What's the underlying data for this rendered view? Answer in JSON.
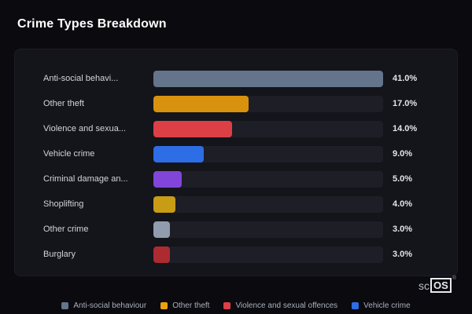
{
  "title": "Crime Types Breakdown",
  "chart_data": {
    "type": "bar",
    "orientation": "horizontal",
    "title": "Crime Types Breakdown",
    "xlim": [
      0,
      41
    ],
    "grid": false,
    "legend_position": "bottom",
    "categories": [
      "Anti-social behavi...",
      "Other theft",
      "Violence and sexua...",
      "Vehicle crime",
      "Criminal damage an...",
      "Shoplifting",
      "Other crime",
      "Burglary"
    ],
    "values": [
      41.0,
      17.0,
      14.0,
      9.0,
      5.0,
      4.0,
      3.0,
      3.0
    ],
    "value_labels": [
      "41.0%",
      "17.0%",
      "14.0%",
      "9.0%",
      "5.0%",
      "4.0%",
      "3.0%",
      "3.0%"
    ],
    "bar_colors": [
      "#64748b",
      "#d8920e",
      "#dc4046",
      "#2d6de6",
      "#8146d9",
      "#c89c15",
      "#919dae",
      "#ac2b31"
    ],
    "track_color": "#1e1e27",
    "legend": [
      {
        "label": "Anti-social behaviour",
        "color": "#64748b"
      },
      {
        "label": "Other theft",
        "color": "#eba20d"
      },
      {
        "label": "Violence and sexual offences",
        "color": "#dc4046"
      },
      {
        "label": "Vehicle crime",
        "color": "#2d6de6"
      }
    ]
  },
  "branding": {
    "prefix": "sc",
    "boxed": "OS",
    "registered": "®"
  }
}
